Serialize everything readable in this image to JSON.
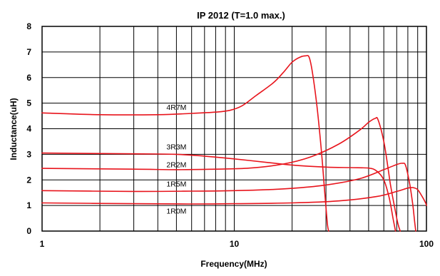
{
  "chart_data": {
    "type": "line",
    "title": "IP 2012 (T=1.0 max.)",
    "xlabel": "Frequency(MHz)",
    "ylabel": "Inductance(uH)",
    "x_scale": "log",
    "xlim": [
      1,
      100
    ],
    "ylim": [
      0,
      8
    ],
    "grid": true,
    "line_color": "#e8141c",
    "x_tick_labels": [
      {
        "value": 1,
        "label": "1"
      },
      {
        "value": 10,
        "label": "10"
      },
      {
        "value": 100,
        "label": "100"
      }
    ],
    "y_tick_labels": [
      {
        "value": 0,
        "label": "0"
      },
      {
        "value": 1,
        "label": "1"
      },
      {
        "value": 2,
        "label": "2"
      },
      {
        "value": 3,
        "label": "3"
      },
      {
        "value": 4,
        "label": "4"
      },
      {
        "value": 5,
        "label": "5"
      },
      {
        "value": 6,
        "label": "6"
      },
      {
        "value": 7,
        "label": "7"
      },
      {
        "value": 8,
        "label": "8"
      }
    ],
    "series": [
      {
        "name": "4R7M",
        "label_at": {
          "x": 5,
          "y": 4.85
        },
        "points": [
          [
            1,
            4.62
          ],
          [
            2,
            4.55
          ],
          [
            4,
            4.55
          ],
          [
            6,
            4.6
          ],
          [
            8,
            4.65
          ],
          [
            9.5,
            4.72
          ],
          [
            11,
            4.9
          ],
          [
            13,
            5.3
          ],
          [
            16,
            5.8
          ],
          [
            18,
            6.2
          ],
          [
            20,
            6.6
          ],
          [
            22,
            6.8
          ],
          [
            23.5,
            6.85
          ],
          [
            24.5,
            6.8
          ],
          [
            25.5,
            6.2
          ],
          [
            27,
            4.8
          ],
          [
            28.5,
            3.0
          ],
          [
            29.5,
            1.6
          ],
          [
            30.5,
            0.3
          ],
          [
            31,
            0
          ]
        ]
      },
      {
        "name": "3R3M",
        "label_at": {
          "x": 5,
          "y": 3.3
        },
        "points": [
          [
            1,
            3.05
          ],
          [
            3,
            3.02
          ],
          [
            5,
            3.0
          ],
          [
            7,
            2.93
          ],
          [
            10,
            2.82
          ],
          [
            15,
            2.68
          ],
          [
            20,
            2.58
          ],
          [
            30,
            2.5
          ],
          [
            40,
            2.48
          ],
          [
            50,
            2.46
          ],
          [
            55,
            2.35
          ],
          [
            60,
            2.0
          ],
          [
            64,
            1.3
          ],
          [
            67,
            0.5
          ],
          [
            69,
            0
          ]
        ]
      },
      {
        "name": "2R2M",
        "label_at": {
          "x": 5,
          "y": 2.6
        },
        "points": [
          [
            1,
            2.45
          ],
          [
            3,
            2.42
          ],
          [
            5,
            2.4
          ],
          [
            8,
            2.42
          ],
          [
            12,
            2.46
          ],
          [
            18,
            2.62
          ],
          [
            25,
            2.9
          ],
          [
            35,
            3.4
          ],
          [
            45,
            3.95
          ],
          [
            50,
            4.25
          ],
          [
            54,
            4.4
          ],
          [
            56,
            4.35
          ],
          [
            60,
            3.5
          ],
          [
            63,
            2.5
          ],
          [
            65,
            1.8
          ],
          [
            68,
            1.0
          ],
          [
            71,
            0.3
          ],
          [
            73,
            0
          ]
        ]
      },
      {
        "name": "1R5M",
        "label_at": {
          "x": 5,
          "y": 1.85
        },
        "points": [
          [
            1,
            1.58
          ],
          [
            3,
            1.55
          ],
          [
            6,
            1.56
          ],
          [
            10,
            1.58
          ],
          [
            15,
            1.62
          ],
          [
            20,
            1.67
          ],
          [
            30,
            1.8
          ],
          [
            45,
            2.05
          ],
          [
            60,
            2.4
          ],
          [
            70,
            2.6
          ],
          [
            75,
            2.65
          ],
          [
            78,
            2.55
          ],
          [
            82,
            1.8
          ],
          [
            85,
            1.0
          ],
          [
            87,
            0.3
          ],
          [
            88,
            0
          ]
        ]
      },
      {
        "name": "1R0M",
        "label_at": {
          "x": 5,
          "y": 0.8
        },
        "points": [
          [
            1,
            1.1
          ],
          [
            3,
            1.07
          ],
          [
            6,
            1.06
          ],
          [
            10,
            1.07
          ],
          [
            20,
            1.1
          ],
          [
            35,
            1.18
          ],
          [
            55,
            1.35
          ],
          [
            70,
            1.55
          ],
          [
            80,
            1.68
          ],
          [
            85,
            1.7
          ],
          [
            90,
            1.62
          ],
          [
            95,
            1.35
          ],
          [
            99,
            1.1
          ],
          [
            100,
            1.0
          ]
        ]
      }
    ]
  }
}
